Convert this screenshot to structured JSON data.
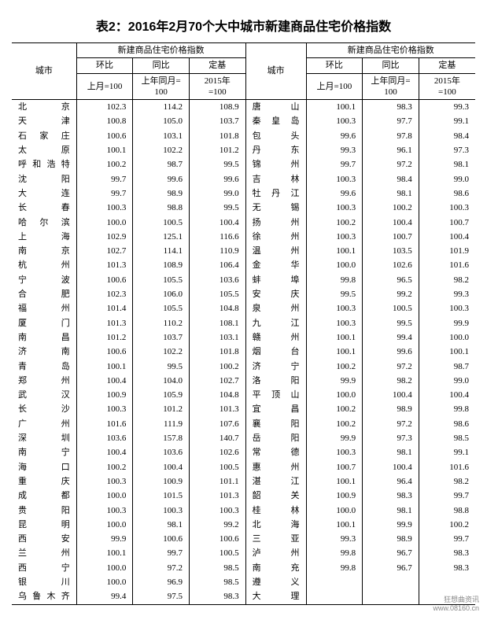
{
  "title": "表2：2016年2月70个大中城市新建商品住宅价格指数",
  "header": {
    "city": "城市",
    "group": "新建商品住宅价格指数",
    "hb": "环比",
    "tb": "同比",
    "dj": "定基",
    "hb_sub": "上月=100",
    "tb_sub": "上年同月=\n100",
    "dj_sub": "2015年\n=100"
  },
  "left": [
    {
      "city": "北　京",
      "v": [
        102.3,
        114.2,
        108.9
      ]
    },
    {
      "city": "天　津",
      "v": [
        100.8,
        105.0,
        103.7
      ]
    },
    {
      "city": "石家庄",
      "v": [
        100.6,
        103.1,
        101.8
      ]
    },
    {
      "city": "太　原",
      "v": [
        100.1,
        102.2,
        101.2
      ]
    },
    {
      "city": "呼和浩特",
      "v": [
        100.2,
        98.7,
        99.5
      ]
    },
    {
      "city": "沈　阳",
      "v": [
        99.7,
        99.6,
        99.6
      ]
    },
    {
      "city": "大　连",
      "v": [
        99.7,
        98.9,
        99.0
      ]
    },
    {
      "city": "长　春",
      "v": [
        100.3,
        98.8,
        99.5
      ]
    },
    {
      "city": "哈尔滨",
      "v": [
        100.0,
        100.5,
        100.4
      ]
    },
    {
      "city": "上　海",
      "v": [
        102.9,
        125.1,
        116.6
      ]
    },
    {
      "city": "南　京",
      "v": [
        102.7,
        114.1,
        110.9
      ]
    },
    {
      "city": "杭　州",
      "v": [
        101.3,
        108.9,
        106.4
      ]
    },
    {
      "city": "宁　波",
      "v": [
        100.6,
        105.5,
        103.6
      ]
    },
    {
      "city": "合　肥",
      "v": [
        102.3,
        106.0,
        105.5
      ]
    },
    {
      "city": "福　州",
      "v": [
        101.4,
        105.5,
        104.8
      ]
    },
    {
      "city": "厦　门",
      "v": [
        101.3,
        110.2,
        108.1
      ]
    },
    {
      "city": "南　昌",
      "v": [
        101.2,
        103.7,
        103.1
      ]
    },
    {
      "city": "济　南",
      "v": [
        100.6,
        102.2,
        101.8
      ]
    },
    {
      "city": "青　岛",
      "v": [
        100.1,
        99.5,
        100.2
      ]
    },
    {
      "city": "郑　州",
      "v": [
        100.4,
        104.0,
        102.7
      ]
    },
    {
      "city": "武　汉",
      "v": [
        100.9,
        105.9,
        104.8
      ]
    },
    {
      "city": "长　沙",
      "v": [
        100.3,
        101.2,
        101.3
      ]
    },
    {
      "city": "广　州",
      "v": [
        101.6,
        111.9,
        107.6
      ]
    },
    {
      "city": "深　圳",
      "v": [
        103.6,
        157.8,
        140.7
      ]
    },
    {
      "city": "南　宁",
      "v": [
        100.4,
        103.6,
        102.6
      ]
    },
    {
      "city": "海　口",
      "v": [
        100.2,
        100.4,
        100.5
      ]
    },
    {
      "city": "重　庆",
      "v": [
        100.3,
        100.9,
        101.1
      ]
    },
    {
      "city": "成　都",
      "v": [
        100.0,
        101.5,
        101.3
      ]
    },
    {
      "city": "贵　阳",
      "v": [
        100.3,
        100.3,
        100.3
      ]
    },
    {
      "city": "昆　明",
      "v": [
        100.0,
        98.1,
        99.2
      ]
    },
    {
      "city": "西　安",
      "v": [
        99.9,
        100.6,
        100.6
      ]
    },
    {
      "city": "兰　州",
      "v": [
        100.1,
        99.7,
        100.5
      ]
    },
    {
      "city": "西　宁",
      "v": [
        100.0,
        97.2,
        98.5
      ]
    },
    {
      "city": "银　川",
      "v": [
        100.0,
        96.9,
        98.5
      ]
    },
    {
      "city": "乌鲁木齐",
      "v": [
        99.4,
        97.5,
        98.3
      ]
    }
  ],
  "right": [
    {
      "city": "唐　山",
      "v": [
        100.1,
        98.3,
        99.3
      ]
    },
    {
      "city": "秦皇岛",
      "v": [
        100.3,
        97.7,
        99.1
      ]
    },
    {
      "city": "包　头",
      "v": [
        99.6,
        97.8,
        98.4
      ]
    },
    {
      "city": "丹　东",
      "v": [
        99.3,
        96.1,
        97.3
      ]
    },
    {
      "city": "锦　州",
      "v": [
        99.7,
        97.2,
        98.1
      ]
    },
    {
      "city": "吉　林",
      "v": [
        100.3,
        98.4,
        99.0
      ]
    },
    {
      "city": "牡丹江",
      "v": [
        99.6,
        98.1,
        98.6
      ]
    },
    {
      "city": "无　锡",
      "v": [
        100.3,
        100.2,
        100.3
      ]
    },
    {
      "city": "扬　州",
      "v": [
        100.2,
        100.4,
        100.7
      ]
    },
    {
      "city": "徐　州",
      "v": [
        100.3,
        100.7,
        100.4
      ]
    },
    {
      "city": "温　州",
      "v": [
        100.1,
        103.5,
        101.9
      ]
    },
    {
      "city": "金　华",
      "v": [
        100.0,
        102.6,
        101.6
      ]
    },
    {
      "city": "蚌　埠",
      "v": [
        99.8,
        96.5,
        98.2
      ]
    },
    {
      "city": "安　庆",
      "v": [
        99.5,
        99.2,
        99.3
      ]
    },
    {
      "city": "泉　州",
      "v": [
        100.3,
        100.5,
        100.3
      ]
    },
    {
      "city": "九　江",
      "v": [
        100.3,
        99.5,
        99.9
      ]
    },
    {
      "city": "赣　州",
      "v": [
        100.1,
        99.4,
        100.0
      ]
    },
    {
      "city": "烟　台",
      "v": [
        100.1,
        99.6,
        100.1
      ]
    },
    {
      "city": "济　宁",
      "v": [
        100.2,
        97.2,
        98.7
      ]
    },
    {
      "city": "洛　阳",
      "v": [
        99.9,
        98.2,
        99.0
      ]
    },
    {
      "city": "平顶山",
      "v": [
        100.0,
        100.4,
        100.4
      ]
    },
    {
      "city": "宜　昌",
      "v": [
        100.2,
        98.9,
        99.8
      ]
    },
    {
      "city": "襄　阳",
      "v": [
        100.2,
        97.2,
        98.6
      ]
    },
    {
      "city": "岳　阳",
      "v": [
        99.9,
        97.3,
        98.5
      ]
    },
    {
      "city": "常　德",
      "v": [
        100.3,
        98.1,
        99.1
      ]
    },
    {
      "city": "惠　州",
      "v": [
        100.7,
        100.4,
        101.6
      ]
    },
    {
      "city": "湛　江",
      "v": [
        100.1,
        96.4,
        98.2
      ]
    },
    {
      "city": "韶　关",
      "v": [
        100.9,
        98.3,
        99.7
      ]
    },
    {
      "city": "桂　林",
      "v": [
        100.0,
        98.1,
        98.8
      ]
    },
    {
      "city": "北　海",
      "v": [
        100.1,
        99.9,
        100.2
      ]
    },
    {
      "city": "三　亚",
      "v": [
        99.3,
        98.9,
        99.7
      ]
    },
    {
      "city": "泸　州",
      "v": [
        99.8,
        96.7,
        98.3
      ]
    },
    {
      "city": "南　充",
      "v": [
        99.8,
        96.7,
        98.3
      ]
    },
    {
      "city": "遵　义",
      "v": [
        null,
        null,
        null
      ]
    },
    {
      "city": "大　理",
      "v": [
        null,
        null,
        null
      ]
    }
  ],
  "watermark": {
    "line1": "狂想曲资讯",
    "line2": "www.08160.cn"
  },
  "colors": {
    "text": "#000000",
    "bg": "#ffffff",
    "rule": "#000000"
  }
}
